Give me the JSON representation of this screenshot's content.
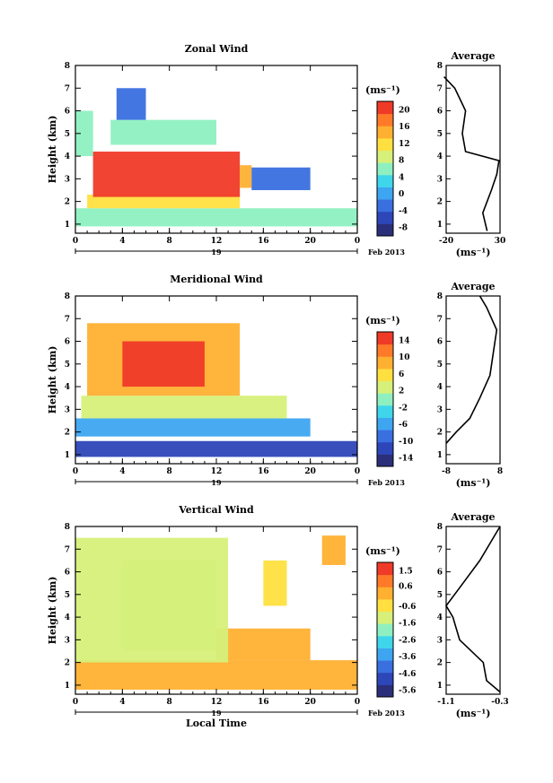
{
  "chart_data": [
    {
      "type": "heatmap",
      "title": "Zonal Wind",
      "ylabel": "Height (km)",
      "xlabel": "",
      "xticks": [
        "0",
        "4",
        "8",
        "12",
        "16",
        "20",
        "0"
      ],
      "date_label": "19",
      "month_label": "Feb 2013",
      "yticks": [
        "1",
        "2",
        "3",
        "4",
        "5",
        "6",
        "7",
        "8"
      ],
      "ylim": [
        0.6,
        8
      ],
      "colorbar": {
        "unit": "(ms⁻¹)",
        "ticks": [
          "20",
          "16",
          "12",
          "8",
          "4",
          "0",
          "-4",
          "-8"
        ],
        "min": -10,
        "max": 22
      },
      "regions": [
        {
          "x0": 0,
          "x1": 24,
          "y0": 0.9,
          "y1": 1.7,
          "v": 6
        },
        {
          "x0": 1,
          "x1": 14,
          "y0": 1.7,
          "y1": 2.3,
          "v": 13
        },
        {
          "x0": 1.5,
          "x1": 14,
          "y0": 2.2,
          "y1": 4.2,
          "v": 20
        },
        {
          "x0": 14,
          "x1": 15,
          "y0": 2.6,
          "y1": 3.6,
          "v": 15
        },
        {
          "x0": 15,
          "x1": 20,
          "y0": 2.5,
          "y1": 3.5,
          "v": -4
        },
        {
          "x0": 3,
          "x1": 12,
          "y0": 4.5,
          "y1": 5.6,
          "v": 6
        },
        {
          "x0": 3.5,
          "x1": 6,
          "y0": 5.6,
          "y1": 7.0,
          "v": -2
        },
        {
          "x0": 0,
          "x1": 1.5,
          "y0": 4.0,
          "y1": 6.0,
          "v": 5
        }
      ],
      "profile": {
        "xlim": [
          -20,
          30
        ],
        "xticks": [
          "-20",
          "30"
        ],
        "unit": "(ms⁻¹)",
        "title": "Average",
        "points": [
          [
            18,
            0.7
          ],
          [
            14,
            1.5
          ],
          [
            22,
            2.5
          ],
          [
            27,
            3.2
          ],
          [
            29,
            3.8
          ],
          [
            -2,
            4.2
          ],
          [
            -5,
            5.0
          ],
          [
            -2,
            6.0
          ],
          [
            -12,
            7.0
          ],
          [
            -22,
            7.5
          ]
        ]
      }
    },
    {
      "type": "heatmap",
      "title": "Meridional Wind",
      "ylabel": "Height (km)",
      "xlabel": "",
      "xticks": [
        "0",
        "4",
        "8",
        "12",
        "16",
        "20",
        "0"
      ],
      "date_label": "19",
      "month_label": "Feb 2013",
      "yticks": [
        "1",
        "2",
        "3",
        "4",
        "5",
        "6",
        "7",
        "8"
      ],
      "ylim": [
        0.6,
        8
      ],
      "colorbar": {
        "unit": "(ms⁻¹)",
        "ticks": [
          "14",
          "10",
          "6",
          "2",
          "-2",
          "-6",
          "-10",
          "-14"
        ],
        "min": -16,
        "max": 16
      },
      "regions": [
        {
          "x0": 0,
          "x1": 24,
          "y0": 0.9,
          "y1": 1.6,
          "v": -12
        },
        {
          "x0": 0,
          "x1": 20,
          "y0": 1.8,
          "y1": 2.6,
          "v": -5
        },
        {
          "x0": 0.5,
          "x1": 18,
          "y0": 2.6,
          "y1": 3.6,
          "v": 4
        },
        {
          "x0": 1,
          "x1": 14,
          "y0": 3.6,
          "y1": 6.8,
          "v": 9
        },
        {
          "x0": 4,
          "x1": 11,
          "y0": 4.0,
          "y1": 6.0,
          "v": 14
        }
      ],
      "profile": {
        "xlim": [
          -8,
          8
        ],
        "xticks": [
          "-8",
          "8"
        ],
        "unit": "(ms⁻¹)",
        "title": "Average",
        "points": [
          [
            -8,
            1.5
          ],
          [
            -5,
            2.0
          ],
          [
            -1,
            2.6
          ],
          [
            2,
            3.5
          ],
          [
            5,
            4.5
          ],
          [
            6,
            5.5
          ],
          [
            7,
            6.5
          ],
          [
            4,
            7.5
          ],
          [
            2,
            8
          ]
        ]
      }
    },
    {
      "type": "heatmap",
      "title": "Vertical Wind",
      "ylabel": "Height (km)",
      "xlabel": "Local Time",
      "xticks": [
        "0",
        "4",
        "8",
        "12",
        "16",
        "20",
        "0"
      ],
      "date_label": "19",
      "month_label": "Feb 2013",
      "yticks": [
        "1",
        "2",
        "3",
        "4",
        "5",
        "6",
        "7",
        "8"
      ],
      "ylim": [
        0.6,
        8
      ],
      "colorbar": {
        "unit": "(ms⁻¹)",
        "ticks": [
          "1.5",
          "0.6",
          "-0.6",
          "-1.6",
          "-2.6",
          "-3.6",
          "-4.6",
          "-5.6"
        ],
        "min": -6,
        "max": 2
      },
      "regions": [
        {
          "x0": 0,
          "x1": 24,
          "y0": 0.8,
          "y1": 2.1,
          "v": 0.5
        },
        {
          "x0": 12,
          "x1": 20,
          "y0": 2.1,
          "y1": 3.5,
          "v": 0.3
        },
        {
          "x0": 0,
          "x1": 13,
          "y0": 2.0,
          "y1": 7.5,
          "v": -1.0
        },
        {
          "x0": 4,
          "x1": 12,
          "y0": 2.5,
          "y1": 6.5,
          "v": -1.6
        },
        {
          "x0": 16,
          "x1": 18,
          "y0": 4.5,
          "y1": 6.5,
          "v": -0.8
        },
        {
          "x0": 21,
          "x1": 23,
          "y0": 6.3,
          "y1": 7.6,
          "v": 0.4
        }
      ],
      "profile": {
        "xlim": [
          -1.1,
          -0.3
        ],
        "xticks": [
          "-1.1",
          "-0.3"
        ],
        "unit": "(ms⁻¹)",
        "title": "Average",
        "points": [
          [
            -0.3,
            0.7
          ],
          [
            -0.5,
            1.2
          ],
          [
            -0.55,
            2.0
          ],
          [
            -0.9,
            3.0
          ],
          [
            -1.0,
            4.0
          ],
          [
            -1.1,
            4.5
          ],
          [
            -0.85,
            5.5
          ],
          [
            -0.6,
            6.5
          ],
          [
            -0.4,
            7.5
          ],
          [
            -0.3,
            8
          ]
        ]
      }
    }
  ]
}
